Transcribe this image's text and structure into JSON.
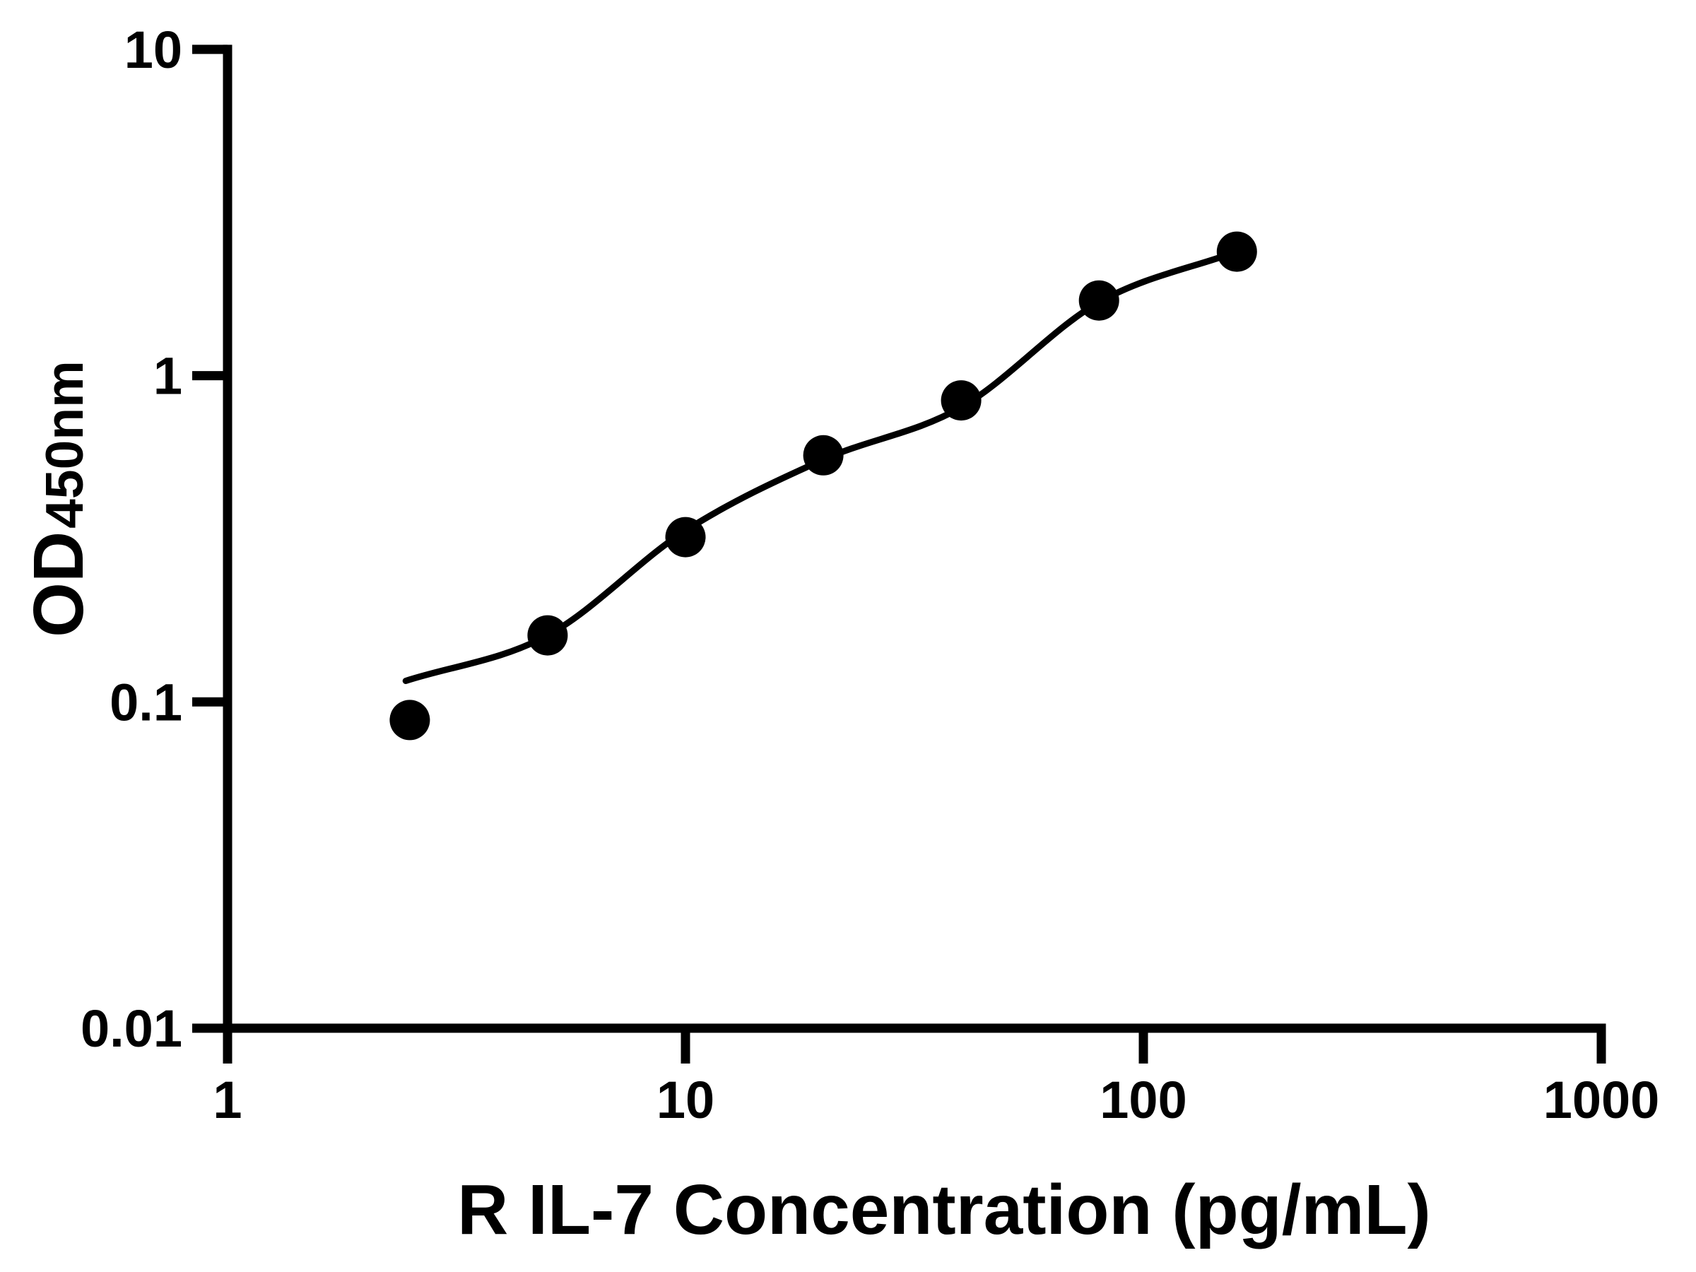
{
  "figure": {
    "background": "#ffffff",
    "foreground": "#000000"
  },
  "chart_data": {
    "type": "scatter",
    "title": "",
    "xlabel": "R IL-7 Concentration (pg/mL)",
    "ylabel": {
      "main": "OD",
      "subscript": "450nm"
    },
    "x_scale": "log10",
    "y_scale": "log10",
    "xlim": [
      1,
      1000
    ],
    "ylim": [
      0.01,
      10
    ],
    "grid": "off",
    "legend": "none",
    "axis_color": "#000000",
    "marker": {
      "shape": "filled-circle",
      "color": "#000000"
    },
    "x_ticks": [
      {
        "value": 1,
        "label": "1"
      },
      {
        "value": 10,
        "label": "10"
      },
      {
        "value": 100,
        "label": "100"
      },
      {
        "value": 1000,
        "label": "1000"
      }
    ],
    "y_ticks": [
      {
        "value": 0.01,
        "label": "0.01"
      },
      {
        "value": 0.1,
        "label": "0.1"
      },
      {
        "value": 1,
        "label": "1"
      },
      {
        "value": 10,
        "label": "10"
      }
    ],
    "series": [
      {
        "role": "standard-points",
        "color": "#000000",
        "points": [
          {
            "x": 2.5,
            "y": 0.088
          },
          {
            "x": 5,
            "y": 0.16
          },
          {
            "x": 10,
            "y": 0.32
          },
          {
            "x": 20,
            "y": 0.57
          },
          {
            "x": 40,
            "y": 0.84
          },
          {
            "x": 80,
            "y": 1.7
          },
          {
            "x": 160,
            "y": 2.4
          }
        ]
      }
    ],
    "fit_curve": {
      "role": "4PL-fit",
      "color": "#000000",
      "anchors": [
        {
          "x": 2.45,
          "y": 0.116
        },
        {
          "x": 5,
          "y": 0.16
        },
        {
          "x": 10,
          "y": 0.335
        },
        {
          "x": 20,
          "y": 0.553
        },
        {
          "x": 40,
          "y": 0.8
        },
        {
          "x": 80,
          "y": 1.68
        },
        {
          "x": 160,
          "y": 2.4
        }
      ]
    }
  }
}
